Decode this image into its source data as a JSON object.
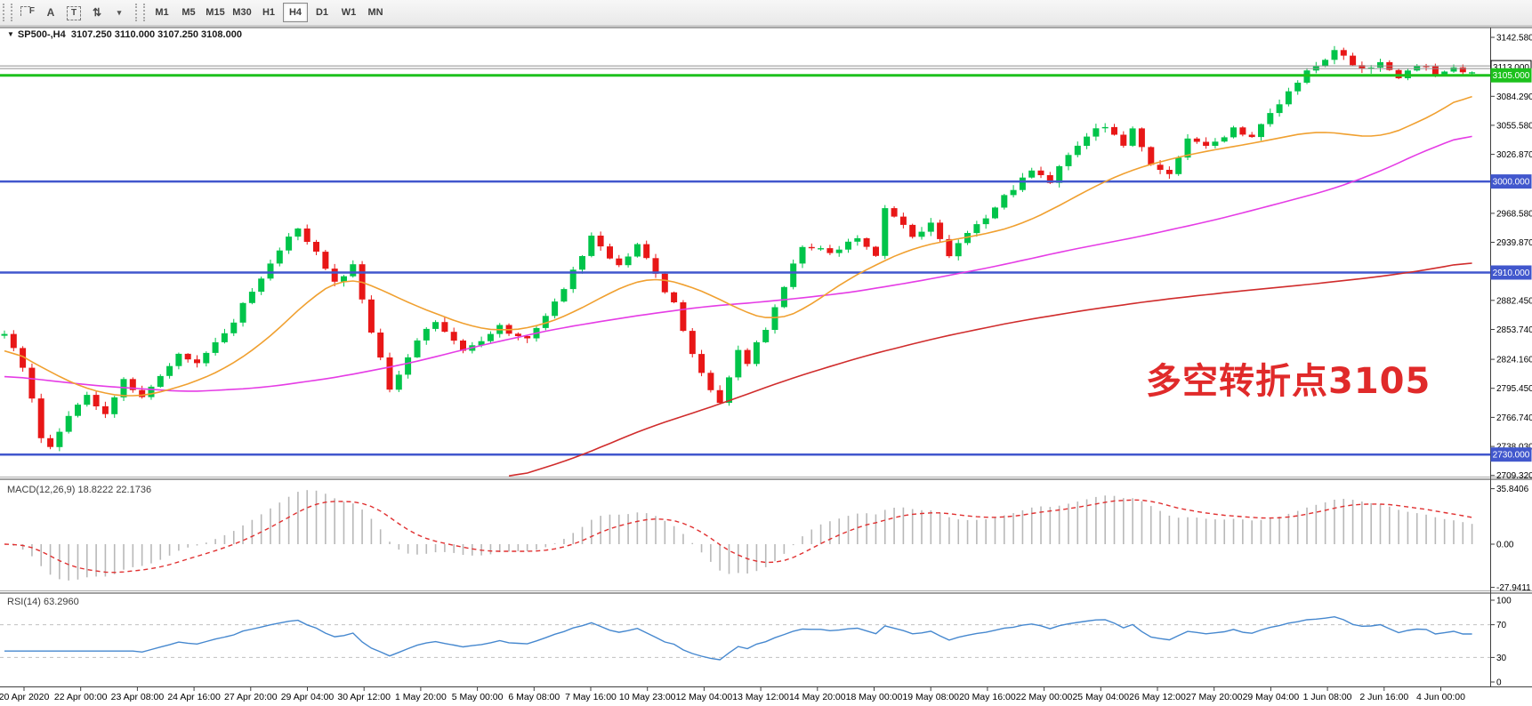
{
  "toolbar": {
    "tools": [
      {
        "name": "fibonacci-tool",
        "glyph": "F"
      },
      {
        "name": "text-tool",
        "glyph": "A"
      },
      {
        "name": "text-label-tool",
        "glyph": "T"
      },
      {
        "name": "arrows-tool",
        "glyph": "⇅"
      }
    ],
    "dropdown_caret": "▾",
    "timeframes": [
      "M1",
      "M5",
      "M15",
      "M30",
      "H1",
      "H4",
      "D1",
      "W1",
      "MN"
    ],
    "active_timeframe": "H4"
  },
  "chart": {
    "marker": "▼",
    "title": "SP500-,H4",
    "ohlc": "3107.250 3110.000 3107.250 3108.000"
  },
  "annotation": {
    "text": "多空转折点3105",
    "color": "#e02a2a"
  },
  "price_axis": {
    "ticks": [
      {
        "label": "3142.580",
        "price": 3142.58
      },
      {
        "label": "3084.290",
        "price": 3084.29
      },
      {
        "label": "3055.580",
        "price": 3055.58
      },
      {
        "label": "3026.870",
        "price": 3026.87
      },
      {
        "label": "2968.580",
        "price": 2968.58
      },
      {
        "label": "2939.870",
        "price": 2939.87
      },
      {
        "label": "2882.450",
        "price": 2882.45
      },
      {
        "label": "2853.740",
        "price": 2853.74
      },
      {
        "label": "2824.160",
        "price": 2824.16
      },
      {
        "label": "2795.450",
        "price": 2795.45
      },
      {
        "label": "2766.740",
        "price": 2766.74
      },
      {
        "label": "2738.030",
        "price": 2738.03
      },
      {
        "label": "2709.320",
        "price": 2709.32
      }
    ]
  },
  "hlines": [
    {
      "label": "3113.000",
      "price": 3113.0,
      "color": "#8f8f8f",
      "width": 1,
      "double": true,
      "badge_bg": "#ffffff",
      "badge_fg": "#000000",
      "badge_border": "#000000"
    },
    {
      "label": "3105.000",
      "price": 3105.0,
      "color": "#1dc11d",
      "width": 3,
      "double": false,
      "badge_bg": "#1dc11d",
      "badge_fg": "#ffffff",
      "badge_border": "#1dc11d"
    },
    {
      "label": "3000.000",
      "price": 3000.0,
      "color": "#4157cd",
      "width": 2.5,
      "double": false,
      "badge_bg": "#4157cd",
      "badge_fg": "#ffffff",
      "badge_border": "#4157cd"
    },
    {
      "label": "2910.000",
      "price": 2910.0,
      "color": "#4157cd",
      "width": 2.5,
      "double": false,
      "badge_bg": "#4157cd",
      "badge_fg": "#ffffff",
      "badge_border": "#4157cd"
    },
    {
      "label": "2730.000",
      "price": 2730.0,
      "color": "#4157cd",
      "width": 2.5,
      "double": false,
      "badge_bg": "#4157cd",
      "badge_fg": "#ffffff",
      "badge_border": "#4157cd"
    }
  ],
  "macd": {
    "name": "MACD(12,26,9)",
    "value_main": "18.8222",
    "value_signal": "22.1736",
    "ticks": [
      {
        "label": "35.8406",
        "v": 35.8406
      },
      {
        "label": "0.00",
        "v": 0
      },
      {
        "label": "-27.9411",
        "v": -27.9411
      }
    ],
    "hist_color": "#b8b8b8",
    "signal_color": "#e03030"
  },
  "rsi": {
    "name": "RSI(14)",
    "value": "63.2960",
    "ticks": [
      {
        "label": "100",
        "v": 100
      },
      {
        "label": "70",
        "v": 70
      },
      {
        "label": "30",
        "v": 30
      },
      {
        "label": "0",
        "v": 0
      }
    ],
    "levels": [
      70,
      30
    ],
    "line_color": "#4688cf"
  },
  "time_axis": {
    "labels": [
      "20 Apr 2020",
      "22 Apr 00:00",
      "23 Apr 08:00",
      "24 Apr 16:00",
      "27 Apr 20:00",
      "29 Apr 04:00",
      "30 Apr 12:00",
      "1 May 20:00",
      "5 May 00:00",
      "6 May 08:00",
      "7 May 16:00",
      "10 May 23:00",
      "12 May 04:00",
      "13 May 12:00",
      "14 May 20:00",
      "18 May 00:00",
      "19 May 08:00",
      "20 May 16:00",
      "22 May 00:00",
      "25 May 04:00",
      "26 May 12:00",
      "27 May 20:00",
      "29 May 04:00",
      "1 Jun 08:00",
      "2 Jun 16:00",
      "4 Jun 00:00"
    ]
  },
  "chart_data": {
    "type": "candlestick",
    "symbol": "SP500-",
    "timeframe": "H4",
    "bars": 161,
    "ylim": [
      2707.3,
      3153.1
    ],
    "grid": false,
    "up_color": "#00c44a",
    "down_color": "#e81717",
    "ma_orange_color": "#f0a030",
    "ma_magenta_color": "#e53ce5",
    "ma_red_color": "#d02c2c",
    "price_anchors": [
      [
        0,
        2852
      ],
      [
        2,
        2818
      ],
      [
        4,
        2748
      ],
      [
        5,
        2738
      ],
      [
        7,
        2768
      ],
      [
        9,
        2788
      ],
      [
        11,
        2772
      ],
      [
        13,
        2806
      ],
      [
        15,
        2784
      ],
      [
        19,
        2830
      ],
      [
        21,
        2820
      ],
      [
        24,
        2848
      ],
      [
        26,
        2878
      ],
      [
        29,
        2920
      ],
      [
        31,
        2948
      ],
      [
        32,
        2952
      ],
      [
        34,
        2930
      ],
      [
        36,
        2902
      ],
      [
        38,
        2916
      ],
      [
        40,
        2852
      ],
      [
        42,
        2795
      ],
      [
        45,
        2845
      ],
      [
        47,
        2862
      ],
      [
        50,
        2832
      ],
      [
        54,
        2856
      ],
      [
        57,
        2843
      ],
      [
        60,
        2880
      ],
      [
        63,
        2928
      ],
      [
        64,
        2948
      ],
      [
        67,
        2916
      ],
      [
        69,
        2936
      ],
      [
        71,
        2908
      ],
      [
        73,
        2878
      ],
      [
        76,
        2808
      ],
      [
        78,
        2780
      ],
      [
        80,
        2836
      ],
      [
        81,
        2822
      ],
      [
        83,
        2856
      ],
      [
        85,
        2898
      ],
      [
        87,
        2938
      ],
      [
        90,
        2930
      ],
      [
        93,
        2946
      ],
      [
        95,
        2926
      ],
      [
        96,
        2972
      ],
      [
        99,
        2946
      ],
      [
        101,
        2960
      ],
      [
        103,
        2928
      ],
      [
        105,
        2950
      ],
      [
        107,
        2966
      ],
      [
        110,
        2994
      ],
      [
        112,
        3010
      ],
      [
        114,
        3000
      ],
      [
        117,
        3038
      ],
      [
        120,
        3056
      ],
      [
        122,
        3036
      ],
      [
        123,
        3050
      ],
      [
        125,
        3018
      ],
      [
        127,
        3006
      ],
      [
        129,
        3040
      ],
      [
        131,
        3034
      ],
      [
        134,
        3052
      ],
      [
        136,
        3044
      ],
      [
        138,
        3066
      ],
      [
        140,
        3088
      ],
      [
        142,
        3110
      ],
      [
        145,
        3128
      ],
      [
        148,
        3110
      ],
      [
        150,
        3120
      ],
      [
        152,
        3103
      ],
      [
        154,
        3116
      ],
      [
        156,
        3106
      ],
      [
        158,
        3113
      ],
      [
        160,
        3108
      ]
    ],
    "ma_orange": [
      [
        0,
        2838
      ],
      [
        4,
        2816
      ],
      [
        9,
        2794
      ],
      [
        14,
        2786
      ],
      [
        19,
        2796
      ],
      [
        24,
        2814
      ],
      [
        29,
        2846
      ],
      [
        33,
        2882
      ],
      [
        37,
        2906
      ],
      [
        40,
        2898
      ],
      [
        44,
        2880
      ],
      [
        48,
        2866
      ],
      [
        51,
        2856
      ],
      [
        54,
        2852
      ],
      [
        58,
        2856
      ],
      [
        62,
        2870
      ],
      [
        66,
        2890
      ],
      [
        69,
        2902
      ],
      [
        71,
        2905
      ],
      [
        74,
        2899
      ],
      [
        78,
        2884
      ],
      [
        81,
        2869
      ],
      [
        84,
        2862
      ],
      [
        87,
        2872
      ],
      [
        91,
        2898
      ],
      [
        95,
        2918
      ],
      [
        99,
        2934
      ],
      [
        103,
        2942
      ],
      [
        107,
        2948
      ],
      [
        111,
        2958
      ],
      [
        115,
        2976
      ],
      [
        119,
        2996
      ],
      [
        123,
        3012
      ],
      [
        127,
        3022
      ],
      [
        131,
        3030
      ],
      [
        135,
        3036
      ],
      [
        139,
        3043
      ],
      [
        143,
        3050
      ],
      [
        147,
        3046
      ],
      [
        150,
        3043
      ],
      [
        154,
        3058
      ],
      [
        157,
        3072
      ],
      [
        160,
        3090
      ]
    ],
    "ma_magenta": [
      [
        0,
        2808
      ],
      [
        10,
        2798
      ],
      [
        20,
        2792
      ],
      [
        28,
        2796
      ],
      [
        36,
        2806
      ],
      [
        44,
        2820
      ],
      [
        52,
        2838
      ],
      [
        60,
        2854
      ],
      [
        68,
        2866
      ],
      [
        76,
        2876
      ],
      [
        84,
        2882
      ],
      [
        92,
        2890
      ],
      [
        100,
        2902
      ],
      [
        108,
        2916
      ],
      [
        116,
        2932
      ],
      [
        124,
        2946
      ],
      [
        132,
        2962
      ],
      [
        138,
        2976
      ],
      [
        145,
        2993
      ],
      [
        150,
        3010
      ],
      [
        155,
        3031
      ],
      [
        160,
        3048
      ]
    ],
    "ma_red": [
      [
        55,
        2706
      ],
      [
        62,
        2726
      ],
      [
        70,
        2756
      ],
      [
        78,
        2780
      ],
      [
        86,
        2806
      ],
      [
        94,
        2828
      ],
      [
        102,
        2846
      ],
      [
        110,
        2861
      ],
      [
        118,
        2873
      ],
      [
        126,
        2883
      ],
      [
        134,
        2891
      ],
      [
        142,
        2898
      ],
      [
        150,
        2906
      ],
      [
        156,
        2914
      ],
      [
        160,
        2921
      ]
    ]
  }
}
